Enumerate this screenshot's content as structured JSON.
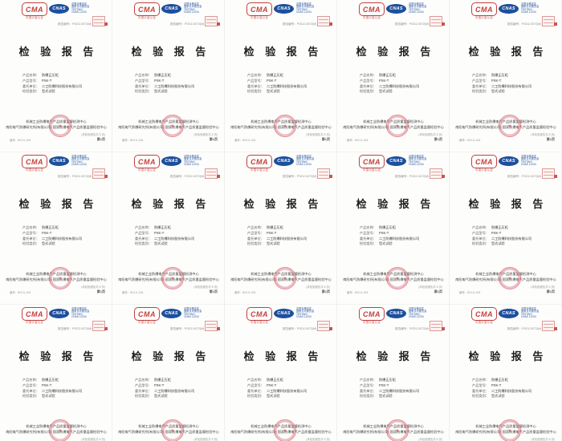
{
  "grid": {
    "columns": 5,
    "rows": 3,
    "tiles": 15
  },
  "colors": {
    "cma_red": "#c4403c",
    "cnas_blue": "#1d4f9c",
    "seal_red": "#c93342",
    "stamp_pink": "#dd9a96",
    "title_black": "#1f1f1f",
    "page_white": "#fdfdfc"
  },
  "tile": {
    "cma": {
      "label": "CMA",
      "caption": "中国计量认证"
    },
    "cnas": {
      "label": "CNAS",
      "lines": [
        "中国合格评定",
        "国家认可委员会",
        "TESTING",
        "CNAS L1234"
      ]
    },
    "report_no": "报告编号：PGD2-0072(M)",
    "title": "检 验 报 告",
    "fields": [
      {
        "label": "产品名称：",
        "value": "防爆正压柜"
      },
      {
        "label": "产品型号：",
        "value": "PXK-T"
      },
      {
        "label": "委托单位：",
        "value": "二工防爆科技股份有限公司"
      },
      {
        "label": "检验类别：",
        "value": "型式试验"
      }
    ],
    "footer": {
      "line1": "机械工业防爆电气产品质量监督检测中心",
      "line2": "南阳电气防爆研究所(有限公司)·国家防爆电气产品质量监督检验中心",
      "seal_glyph": "★",
      "company_small": "(本检验报告共 8 页)",
      "bottom_left": "编号：BG/JL-024",
      "bottom_right": "第1页"
    }
  }
}
